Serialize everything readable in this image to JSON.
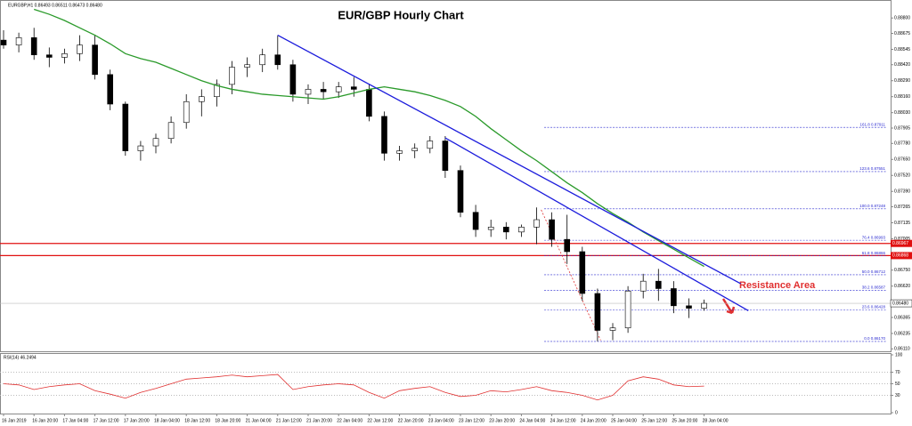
{
  "chart_data": {
    "type": "candlestick",
    "header": "EURGBP,H1  0.86493 0.86511 0.86473 0.86480",
    "title": "EUR/GBP Hourly Chart",
    "annotation": {
      "text": "Resistance Area",
      "color": "#e03030"
    },
    "categories": [
      "16 Jan 2019",
      null,
      "16 Jan 20:00",
      null,
      "17 Jan 04:00",
      null,
      "17 Jan 12:00",
      null,
      "17 Jan 20:00",
      null,
      "18 Jan 04:00",
      null,
      "18 Jan 12:00",
      null,
      "18 Jan 20:00",
      null,
      "21 Jan 04:00",
      null,
      "21 Jan 12:00",
      null,
      "21 Jan 20:00",
      null,
      "22 Jan 04:00",
      null,
      "22 Jan 12:00",
      null,
      "22 Jan 20:00",
      null,
      "23 Jan 04:00",
      null,
      "23 Jan 12:00",
      null,
      "23 Jan 20:00",
      null,
      "24 Jan 04:00",
      null,
      "24 Jan 12:00",
      null,
      "24 Jan 20:00",
      null,
      "25 Jan 04:00",
      null,
      "25 Jan 12:00",
      null,
      "25 Jan 20:00",
      null,
      "28 Jan 04:00"
    ],
    "open": [
      0.8862,
      0.8858,
      0.8864,
      0.885,
      0.8848,
      0.8851,
      0.8858,
      0.8834,
      0.881,
      0.8772,
      0.8776,
      0.8782,
      0.8795,
      0.8812,
      0.8816,
      0.8826,
      0.884,
      0.8842,
      0.885,
      0.8842,
      0.8818,
      0.8822,
      0.882,
      0.8824,
      0.8822,
      0.88,
      0.877,
      0.8772,
      0.8774,
      0.878,
      0.8756,
      0.8722,
      0.8708,
      0.871,
      0.8706,
      0.871,
      0.8716,
      0.87,
      0.869,
      0.8656,
      0.8626,
      0.8628,
      0.8658,
      0.8666,
      0.866,
      0.8646,
      0.8644
    ],
    "high": [
      0.887,
      0.8868,
      0.8872,
      0.8856,
      0.8855,
      0.8866,
      0.8866,
      0.8838,
      0.8812,
      0.878,
      0.8786,
      0.88,
      0.8818,
      0.8822,
      0.883,
      0.8845,
      0.8848,
      0.8855,
      0.8866,
      0.8846,
      0.8826,
      0.8828,
      0.8828,
      0.8832,
      0.8826,
      0.8804,
      0.8776,
      0.8778,
      0.8784,
      0.8784,
      0.876,
      0.8728,
      0.8716,
      0.8714,
      0.8712,
      0.8726,
      0.8722,
      0.872,
      0.8694,
      0.866,
      0.8632,
      0.8662,
      0.8672,
      0.8676,
      0.8666,
      0.8652,
      0.8651
    ],
    "low": [
      0.8855,
      0.8852,
      0.8846,
      0.884,
      0.8843,
      0.8845,
      0.883,
      0.8805,
      0.8768,
      0.8764,
      0.877,
      0.8778,
      0.879,
      0.88,
      0.8808,
      0.8818,
      0.8832,
      0.8836,
      0.8838,
      0.8812,
      0.881,
      0.8814,
      0.8815,
      0.8816,
      0.8796,
      0.8764,
      0.8764,
      0.8766,
      0.877,
      0.875,
      0.8718,
      0.8702,
      0.8702,
      0.87,
      0.8702,
      0.8696,
      0.8694,
      0.868,
      0.865,
      0.8617,
      0.8618,
      0.8624,
      0.8652,
      0.865,
      0.864,
      0.8636,
      0.8642
    ],
    "close": [
      0.8858,
      0.8864,
      0.885,
      0.8848,
      0.8851,
      0.8858,
      0.8834,
      0.881,
      0.8772,
      0.8776,
      0.8782,
      0.8795,
      0.8812,
      0.8816,
      0.8826,
      0.884,
      0.8842,
      0.885,
      0.8842,
      0.8818,
      0.8822,
      0.882,
      0.8824,
      0.8822,
      0.88,
      0.877,
      0.8772,
      0.8774,
      0.878,
      0.8756,
      0.8722,
      0.8708,
      0.871,
      0.8706,
      0.871,
      0.8716,
      0.87,
      0.869,
      0.8656,
      0.8626,
      0.8628,
      0.8658,
      0.8666,
      0.866,
      0.8646,
      0.8644,
      0.8648
    ],
    "ylim": [
      0.8609,
      0.8891
    ],
    "yticks": [
      {
        "value": 0.888,
        "label": "0.88800"
      },
      {
        "value": 0.88675,
        "label": "0.88675"
      },
      {
        "value": 0.88545,
        "label": "0.88545"
      },
      {
        "value": 0.8842,
        "label": "0.88420"
      },
      {
        "value": 0.8829,
        "label": "0.88290"
      },
      {
        "value": 0.8816,
        "label": "0.88160"
      },
      {
        "value": 0.8803,
        "label": "0.88030"
      },
      {
        "value": 0.87905,
        "label": "0.87905"
      },
      {
        "value": 0.8778,
        "label": "0.87780"
      },
      {
        "value": 0.8765,
        "label": "0.87650"
      },
      {
        "value": 0.8752,
        "label": "0.87520"
      },
      {
        "value": 0.8739,
        "label": "0.87390"
      },
      {
        "value": 0.87265,
        "label": "0.87265"
      },
      {
        "value": 0.87135,
        "label": "0.87135"
      },
      {
        "value": 0.87005,
        "label": "0.87005"
      },
      {
        "value": 0.8675,
        "label": "0.86750"
      },
      {
        "value": 0.8662,
        "label": "0.86620"
      },
      {
        "value": 0.86365,
        "label": "0.86365"
      },
      {
        "value": 0.86235,
        "label": "0.86235"
      },
      {
        "value": 0.8611,
        "label": "0.86110"
      }
    ],
    "ma": {
      "color": "#2a9a2a",
      "values": [
        null,
        null,
        0.8887,
        0.8883,
        0.8878,
        0.8872,
        0.8866,
        0.8859,
        0.8851,
        0.8847,
        0.8844,
        0.8839,
        0.8834,
        0.8829,
        0.8825,
        0.8822,
        0.882,
        0.8818,
        0.8817,
        0.8816,
        0.8815,
        0.8814,
        0.8816,
        0.8819,
        0.8822,
        0.8824,
        0.8822,
        0.882,
        0.8817,
        0.8813,
        0.8808,
        0.88,
        0.879,
        0.8781,
        0.8772,
        0.8764,
        0.8755,
        0.8746,
        0.8738,
        0.8729,
        0.8721,
        0.8714,
        0.8706,
        0.8699,
        0.8692,
        0.8685,
        0.8678
      ]
    },
    "trendlines": [
      {
        "color": "#1c1cdc",
        "x": [
          18,
          48.4
        ],
        "y": [
          0.8866,
          0.8664
        ]
      },
      {
        "color": "#1c1cdc",
        "x": [
          29,
          48.9
        ],
        "y": [
          0.87825,
          0.8642
        ]
      }
    ],
    "swing_line": {
      "color": "#e03030",
      "x": [
        35.3,
        39.2
      ],
      "y": [
        0.8724,
        0.8618
      ]
    },
    "fib": {
      "color": "#2a2ad0",
      "start": 35.5,
      "levels": [
        {
          "label": "161.8 0.87911",
          "value": 0.87911
        },
        {
          "label": "123.6 0.87551",
          "value": 0.87551
        },
        {
          "label": "100.0 0.87248",
          "value": 0.87248
        },
        {
          "label": "76.4 0.86993",
          "value": 0.86993
        },
        {
          "label": "61.8 0.86866",
          "value": 0.86866
        },
        {
          "label": "50.0 0.86712",
          "value": 0.86712
        },
        {
          "label": "38.2 0.86587",
          "value": 0.86587
        },
        {
          "label": "23.6 0.86428",
          "value": 0.86428
        },
        {
          "label": "0.0 0.86170",
          "value": 0.8617
        }
      ]
    },
    "resistance_lines": [
      {
        "value": 0.86967,
        "label": "0.86967",
        "color": "#e01010"
      },
      {
        "value": 0.86868,
        "label": "0.86868",
        "color": "#e01010"
      }
    ],
    "current_price": {
      "value": 0.8648,
      "label": "0.86480"
    },
    "rsi": {
      "label": "RSI(14) 46.2494",
      "color": "#e03030",
      "ylim": [
        0,
        100
      ],
      "yticks": [
        0,
        30,
        50,
        70,
        100
      ],
      "values": [
        50,
        48,
        40,
        45,
        48,
        50,
        38,
        32,
        25,
        35,
        42,
        50,
        58,
        60,
        62,
        65,
        62,
        64,
        66,
        40,
        45,
        48,
        50,
        48,
        35,
        25,
        38,
        42,
        45,
        35,
        28,
        30,
        38,
        36,
        40,
        45,
        38,
        35,
        30,
        22,
        30,
        55,
        62,
        58,
        48,
        45,
        46
      ]
    }
  }
}
